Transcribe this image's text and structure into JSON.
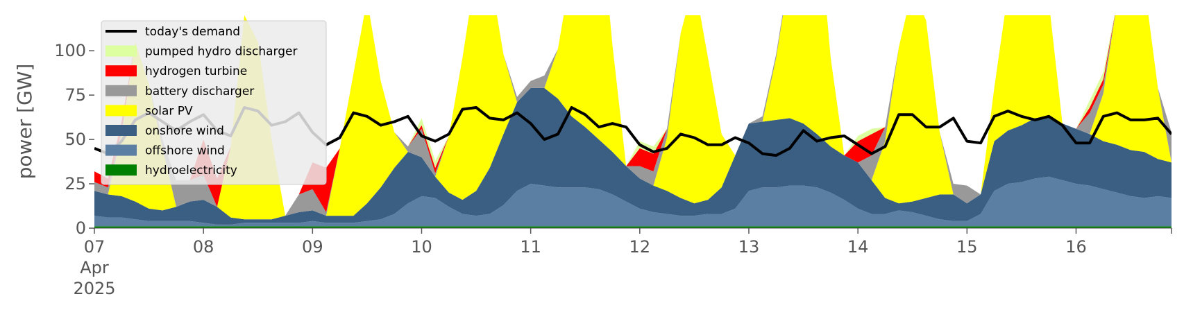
{
  "chart_data": {
    "type": "area",
    "title": "",
    "xlabel": "",
    "ylabel": "power [GW]",
    "ylim": [
      0,
      120
    ],
    "xlim": [
      0,
      237
    ],
    "x_unit": "hours since 07 Apr 2025 00:00",
    "x_ticks": [
      {
        "pos": 0,
        "label": "07",
        "sub": [
          "Apr",
          "2025"
        ]
      },
      {
        "pos": 24,
        "label": "08"
      },
      {
        "pos": 48,
        "label": "09"
      },
      {
        "pos": 72,
        "label": "10"
      },
      {
        "pos": 96,
        "label": "11"
      },
      {
        "pos": 120,
        "label": "12"
      },
      {
        "pos": 144,
        "label": "13"
      },
      {
        "pos": 168,
        "label": "14"
      },
      {
        "pos": 192,
        "label": "15"
      },
      {
        "pos": 216,
        "label": "16"
      }
    ],
    "y_ticks": [
      0,
      25,
      50,
      75,
      100
    ],
    "grid": false,
    "legend_position": "top-left",
    "x": [
      0,
      3,
      6,
      9,
      12,
      15,
      18,
      21,
      24,
      27,
      30,
      33,
      36,
      39,
      42,
      45,
      48,
      51,
      54,
      57,
      60,
      63,
      66,
      69,
      72,
      75,
      78,
      81,
      84,
      87,
      90,
      93,
      96,
      99,
      102,
      105,
      108,
      111,
      114,
      117,
      120,
      123,
      126,
      129,
      132,
      135,
      138,
      141,
      144,
      147,
      150,
      153,
      156,
      159,
      162,
      165,
      168,
      171,
      174,
      177,
      180,
      183,
      186,
      189,
      192,
      195,
      198,
      201,
      204,
      207,
      210,
      213,
      216,
      219,
      222,
      225,
      228,
      231,
      234,
      237
    ],
    "series": [
      {
        "name": "hydroelectricity",
        "color": "#008000",
        "values": [
          1,
          1,
          1,
          1,
          1,
          1,
          1,
          1,
          1,
          1,
          1,
          1,
          1,
          1,
          1,
          1,
          1,
          1,
          1,
          1,
          1,
          1,
          1,
          1,
          1,
          1,
          1,
          1,
          1,
          1,
          1,
          1,
          1,
          1,
          1,
          1,
          1,
          1,
          1,
          1,
          1,
          1,
          1,
          1,
          1,
          1,
          1,
          1,
          1,
          1,
          1,
          1,
          1,
          1,
          1,
          1,
          1,
          1,
          1,
          1,
          1,
          1,
          1,
          1,
          1,
          1,
          1,
          1,
          1,
          1,
          1,
          1,
          1,
          1,
          1,
          1,
          1,
          1,
          1,
          1
        ]
      },
      {
        "name": "offshore wind",
        "color": "#5b7fa2",
        "values": [
          6,
          5,
          5,
          4,
          3,
          3,
          3,
          3,
          2,
          1,
          1,
          2,
          2,
          2,
          2,
          2,
          3,
          2,
          2,
          2,
          3,
          4,
          7,
          13,
          17,
          16,
          11,
          7,
          6,
          7,
          12,
          20,
          24,
          23,
          22,
          22,
          22,
          21,
          18,
          14,
          10,
          8,
          7,
          6,
          6,
          7,
          7,
          10,
          20,
          22,
          22,
          23,
          23,
          22,
          19,
          15,
          10,
          7,
          7,
          9,
          8,
          6,
          4,
          3,
          3,
          7,
          20,
          24,
          25,
          27,
          28,
          26,
          24,
          23,
          21,
          19,
          17,
          16,
          17,
          16
        ]
      },
      {
        "name": "onshore wind",
        "color": "#3a5f82",
        "values": [
          14,
          13,
          12,
          10,
          7,
          6,
          8,
          11,
          13,
          10,
          4,
          2,
          2,
          2,
          4,
          6,
          6,
          4,
          4,
          4,
          10,
          18,
          26,
          29,
          22,
          12,
          8,
          8,
          14,
          26,
          40,
          50,
          54,
          55,
          50,
          40,
          34,
          28,
          24,
          20,
          17,
          15,
          13,
          10,
          7,
          8,
          15,
          30,
          38,
          37,
          38,
          38,
          35,
          30,
          26,
          25,
          26,
          19,
          9,
          4,
          6,
          10,
          14,
          15,
          10,
          11,
          28,
          30,
          32,
          34,
          34,
          32,
          31,
          29,
          27,
          27,
          26,
          26,
          21,
          20
        ]
      },
      {
        "name": "solar PV",
        "color": "#ffff00",
        "values": [
          0,
          0,
          35,
          90,
          70,
          35,
          0,
          0,
          0,
          0,
          40,
          115,
          100,
          45,
          0,
          0,
          0,
          0,
          38,
          80,
          115,
          60,
          20,
          0,
          0,
          0,
          32,
          80,
          125,
          110,
          45,
          0,
          0,
          0,
          28,
          83,
          175,
          135,
          60,
          0,
          0,
          0,
          30,
          93,
          125,
          80,
          30,
          0,
          0,
          0,
          35,
          82,
          135,
          130,
          50,
          0,
          0,
          0,
          32,
          88,
          120,
          100,
          35,
          0,
          0,
          0,
          30,
          78,
          133,
          140,
          65,
          0,
          0,
          0,
          27,
          80,
          115,
          95,
          40,
          0
        ]
      },
      {
        "name": "battery discharger",
        "color": "#999999",
        "values": [
          5,
          4,
          2,
          0,
          0,
          5,
          15,
          12,
          14,
          0,
          0,
          0,
          0,
          0,
          0,
          10,
          12,
          2,
          0,
          0,
          0,
          0,
          0,
          3,
          16,
          2,
          0,
          0,
          0,
          0,
          0,
          3,
          4,
          7,
          0,
          0,
          0,
          0,
          0,
          0,
          7,
          8,
          5,
          0,
          0,
          0,
          0,
          0,
          0,
          3,
          2,
          2,
          0,
          0,
          0,
          0,
          0,
          14,
          8,
          0,
          0,
          0,
          0,
          6,
          10,
          0,
          0,
          0,
          0,
          0,
          0,
          0,
          0,
          12,
          5,
          0,
          0,
          0,
          0,
          17
        ]
      },
      {
        "name": "hydrogen turbine",
        "color": "#ff0000",
        "values": [
          6,
          5,
          5,
          0,
          0,
          0,
          0,
          0,
          20,
          16,
          0,
          0,
          0,
          0,
          0,
          0,
          15,
          25,
          0,
          0,
          0,
          0,
          0,
          0,
          2,
          3,
          0,
          0,
          0,
          0,
          0,
          0,
          0,
          0,
          0,
          0,
          0,
          0,
          0,
          0,
          10,
          10,
          0,
          0,
          0,
          0,
          0,
          0,
          0,
          0,
          0,
          0,
          0,
          0,
          0,
          0,
          12,
          12,
          0,
          0,
          0,
          0,
          0,
          0,
          0,
          0,
          0,
          0,
          0,
          0,
          0,
          0,
          0,
          3,
          3,
          0,
          0,
          0,
          0,
          0
        ]
      },
      {
        "name": "pumped hydro discharger",
        "color": "#ddffa0",
        "values": [
          0,
          0,
          0,
          0,
          0,
          0,
          0,
          0,
          0,
          0,
          0,
          0,
          0,
          0,
          0,
          0,
          0,
          0,
          0,
          0,
          0,
          0,
          0,
          0,
          4,
          4,
          0,
          0,
          0,
          0,
          0,
          0,
          0,
          0,
          0,
          0,
          0,
          0,
          0,
          0,
          4,
          4,
          0,
          0,
          0,
          0,
          0,
          0,
          0,
          0,
          0,
          0,
          0,
          0,
          0,
          0,
          3,
          3,
          0,
          0,
          0,
          0,
          0,
          0,
          0,
          0,
          0,
          0,
          0,
          0,
          0,
          0,
          0,
          4,
          4,
          0,
          0,
          0,
          0,
          0
        ]
      },
      {
        "name": "today's demand",
        "color": "#000000",
        "type": "line",
        "values": [
          45,
          42,
          49,
          61,
          65,
          60,
          55,
          60,
          64,
          55,
          52,
          68,
          66,
          58,
          60,
          65,
          54,
          47,
          51,
          65,
          63,
          58,
          60,
          63,
          52,
          49,
          53,
          67,
          68,
          62,
          61,
          65,
          59,
          50,
          53,
          68,
          64,
          57,
          59,
          57,
          47,
          43,
          45,
          53,
          51,
          47,
          47,
          51,
          48,
          42,
          41,
          45,
          55,
          49,
          51,
          52,
          47,
          42,
          46,
          64,
          64,
          57,
          57,
          62,
          49,
          48,
          63,
          66,
          63,
          61,
          63,
          58,
          48,
          48,
          63,
          65,
          61,
          61,
          62,
          53
        ]
      }
    ]
  }
}
